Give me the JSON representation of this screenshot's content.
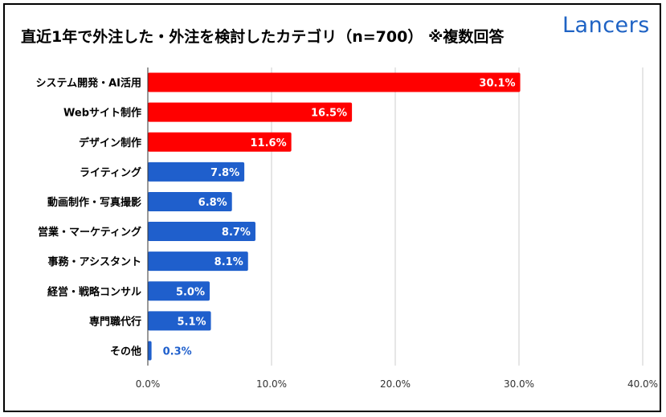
{
  "title": "直近1年で外注した・外注を検討したカテゴリ（n=700） ※複数回答",
  "logo": "Lancers",
  "colors": {
    "highlight": "#ff0000",
    "normal": "#1f5fcc",
    "grid": "#cccccc",
    "axis": "#333333",
    "label_inside": "#ffffff",
    "label_outside": "#1f5fcc"
  },
  "chart_data": {
    "type": "bar",
    "orientation": "horizontal",
    "categories": [
      "システム開発・AI活用",
      "Webサイト制作",
      "デザイン制作",
      "ライティング",
      "動画制作・写真撮影",
      "営業・マーケティング",
      "事務・アシスタント",
      "経営・戦略コンサル",
      "専門職代行",
      "その他"
    ],
    "values": [
      30.1,
      16.5,
      11.6,
      7.8,
      6.8,
      8.7,
      8.1,
      5.0,
      5.1,
      0.3
    ],
    "value_labels": [
      "30.1%",
      "16.5%",
      "11.6%",
      "7.8%",
      "6.8%",
      "8.7%",
      "8.1%",
      "5.0%",
      "5.1%",
      "0.3%"
    ],
    "highlighted": [
      true,
      true,
      true,
      false,
      false,
      false,
      false,
      false,
      false,
      false
    ],
    "xlim": [
      0,
      40
    ],
    "xticks": [
      "0.0%",
      "10.0%",
      "20.0%",
      "30.0%",
      "40.0%"
    ],
    "xlabel": "",
    "ylabel": "",
    "grid": true,
    "legend": "none"
  }
}
